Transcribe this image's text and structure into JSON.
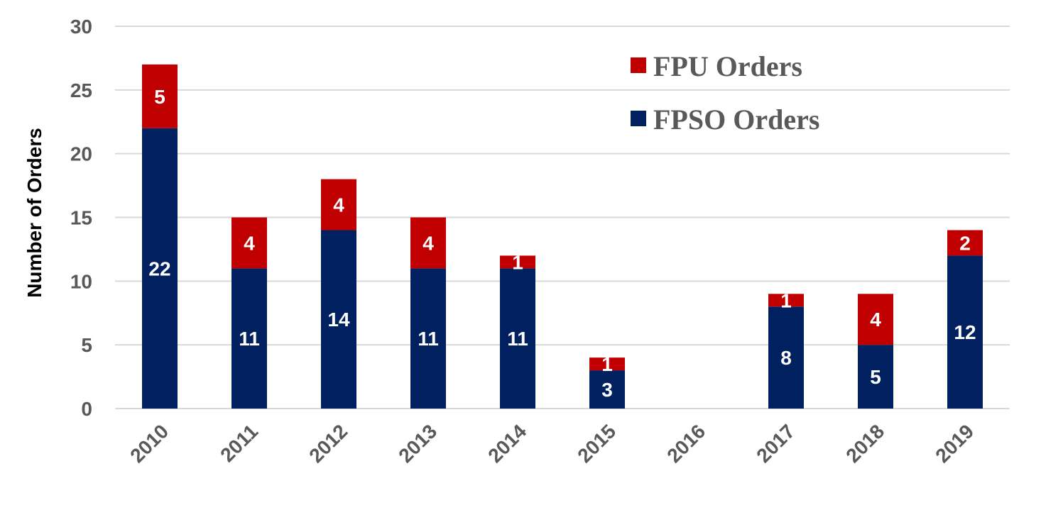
{
  "chart_data": {
    "type": "bar",
    "stacked": true,
    "categories": [
      "2010",
      "2011",
      "2012",
      "2013",
      "2014",
      "2015",
      "2016",
      "2017",
      "2018",
      "2019"
    ],
    "series": [
      {
        "name": "FPSO Orders",
        "color": "#002060",
        "values": [
          22,
          11,
          14,
          11,
          11,
          3,
          0,
          8,
          5,
          12
        ]
      },
      {
        "name": "FPU Orders",
        "color": "#C00000",
        "values": [
          5,
          4,
          4,
          4,
          1,
          1,
          0,
          1,
          4,
          2
        ]
      }
    ],
    "title": "",
    "xlabel": "",
    "ylabel": "Number  of Orders",
    "ylim": [
      0,
      30
    ],
    "yticks": [
      "0",
      "5",
      "10",
      "15",
      "20",
      "25",
      "30"
    ],
    "grid": true,
    "legend_position": "top-right",
    "legend_order": [
      "FPU Orders",
      "FPSO Orders"
    ]
  }
}
